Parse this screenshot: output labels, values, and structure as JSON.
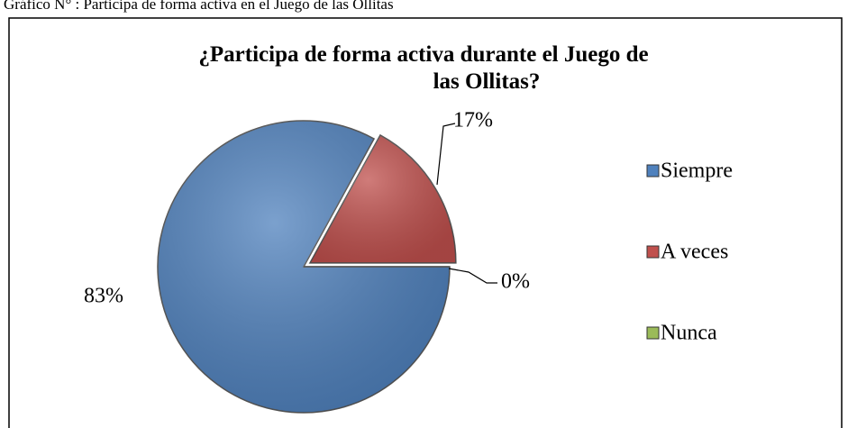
{
  "caption": "Gráfico N° : Participa de forma activa en el Juego de las Ollitas",
  "chart_data": {
    "type": "pie",
    "title": "¿Participa de forma activa durante el Juego de las Ollitas?",
    "categories": [
      "Siempre",
      "A veces",
      "Nunca"
    ],
    "values": [
      83,
      17,
      0
    ],
    "value_labels": [
      "83%",
      "17%",
      "0%"
    ],
    "colors": [
      "#4f81bd",
      "#c0504d",
      "#9bbb59"
    ],
    "legend": "right"
  }
}
